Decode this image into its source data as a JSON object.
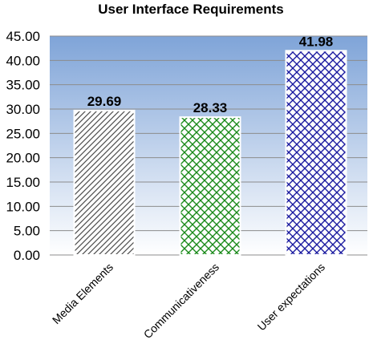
{
  "chart_data": {
    "type": "bar",
    "title": "User Interface Requirements",
    "categories": [
      "Media Elements",
      "Communicativeness",
      "User expectations"
    ],
    "values": [
      29.69,
      28.33,
      41.98
    ],
    "value_labels": [
      "29.69",
      "28.33",
      "41.98"
    ],
    "yticks": [
      "0.00",
      "5.00",
      "10.00",
      "15.00",
      "20.00",
      "25.00",
      "30.00",
      "35.00",
      "40.00",
      "45.00"
    ],
    "ylim": [
      0,
      45
    ],
    "grid": true,
    "legend": "none",
    "colors": [
      "#4d4d4d",
      "#1a8a1a",
      "#1a1aa0"
    ],
    "patterns": [
      "diagonal-lines",
      "crosshatch-diamond",
      "crosshatch-diamond"
    ],
    "plot_background": [
      "#ffffff",
      "#7fa4d8"
    ]
  }
}
